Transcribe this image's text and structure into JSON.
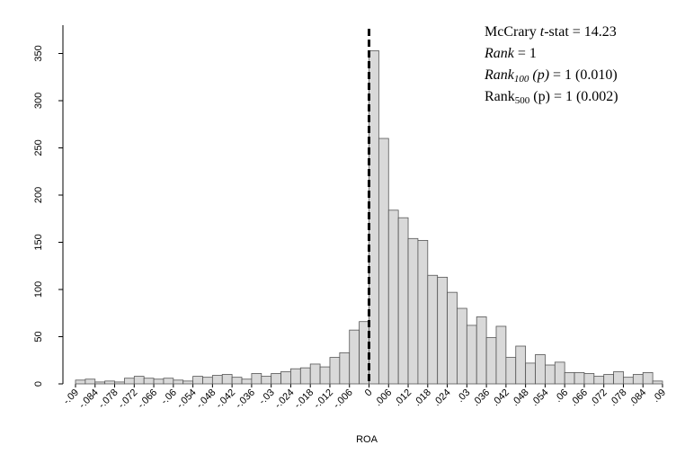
{
  "chart_data": {
    "type": "histogram",
    "x_label": "ROA",
    "bins": [
      -0.09,
      -0.087,
      -0.084,
      -0.081,
      -0.078,
      -0.075,
      -0.072,
      -0.069,
      -0.066,
      -0.063,
      -0.06,
      -0.057,
      -0.054,
      -0.051,
      -0.048,
      -0.045,
      -0.042,
      -0.039,
      -0.036,
      -0.033,
      -0.03,
      -0.027,
      -0.024,
      -0.021,
      -0.018,
      -0.015,
      -0.012,
      -0.009,
      -0.006,
      -0.003,
      0,
      0.003,
      0.006,
      0.009,
      0.012,
      0.015,
      0.018,
      0.021,
      0.024,
      0.027,
      0.03,
      0.033,
      0.036,
      0.039,
      0.042,
      0.045,
      0.048,
      0.051,
      0.054,
      0.057,
      0.06,
      0.063,
      0.066,
      0.069,
      0.072,
      0.075,
      0.078,
      0.081,
      0.084,
      0.087,
      0.09
    ],
    "values": [
      4,
      5,
      2,
      3,
      2,
      6,
      8,
      6,
      5,
      6,
      4,
      3,
      8,
      7,
      9,
      10,
      7,
      5,
      11,
      8,
      11,
      13,
      16,
      17,
      21,
      18,
      28,
      33,
      57,
      66,
      353,
      260,
      184,
      176,
      154,
      152,
      115,
      113,
      97,
      80,
      62,
      71,
      49,
      61,
      28,
      40,
      22,
      31,
      20,
      23,
      12,
      12,
      11,
      8,
      10,
      13,
      7,
      10,
      12,
      3
    ],
    "color": "#d9d9d9",
    "vline": 0,
    "xlim": [
      -0.09,
      0.09
    ],
    "ylim": [
      0,
      380
    ],
    "yticks": [
      0,
      50,
      100,
      150,
      200,
      250,
      300,
      350
    ],
    "xticks": [
      {
        "value": -0.09,
        "label": "-.09"
      },
      {
        "value": -0.084,
        "label": "-.084"
      },
      {
        "value": -0.078,
        "label": "-.078"
      },
      {
        "value": -0.072,
        "label": "-.072"
      },
      {
        "value": -0.066,
        "label": "-.066"
      },
      {
        "value": -0.06,
        "label": "-.06"
      },
      {
        "value": -0.054,
        "label": "-.054"
      },
      {
        "value": -0.048,
        "label": "-.048"
      },
      {
        "value": -0.042,
        "label": "-.042"
      },
      {
        "value": -0.036,
        "label": "-.036"
      },
      {
        "value": -0.03,
        "label": "-.03"
      },
      {
        "value": -0.024,
        "label": "-.024"
      },
      {
        "value": -0.018,
        "label": "-.018"
      },
      {
        "value": -0.012,
        "label": "-.012"
      },
      {
        "value": -0.006,
        "label": "-.006"
      },
      0,
      {
        "value": 0.006,
        "label": ".006"
      },
      {
        "value": 0.012,
        "label": ".012"
      },
      {
        "value": 0.018,
        "label": ".018"
      },
      {
        "value": 0.024,
        "label": ".024"
      },
      {
        "value": 0.03,
        "label": ".03"
      },
      {
        "value": 0.036,
        "label": ".036"
      },
      {
        "value": 0.042,
        "label": ".042"
      },
      {
        "value": 0.048,
        "label": ".048"
      },
      {
        "value": 0.054,
        "label": ".054"
      },
      {
        "value": 0.06,
        "label": ".06"
      },
      {
        "value": 0.066,
        "label": ".066"
      },
      {
        "value": 0.072,
        "label": ".072"
      },
      {
        "value": 0.078,
        "label": ".078"
      },
      {
        "value": 0.084,
        "label": ".084"
      },
      {
        "value": 0.09,
        "label": ".09"
      }
    ],
    "annotations": [
      [
        "McCrary ",
        "t",
        "-stat = 14.23"
      ],
      [
        "Rank",
        " = 1"
      ],
      [
        "Rank",
        "100",
        " (p)",
        " = 1 (0.010)"
      ],
      [
        "Rank",
        "500",
        " (p) = 1 (0.002)"
      ]
    ]
  }
}
